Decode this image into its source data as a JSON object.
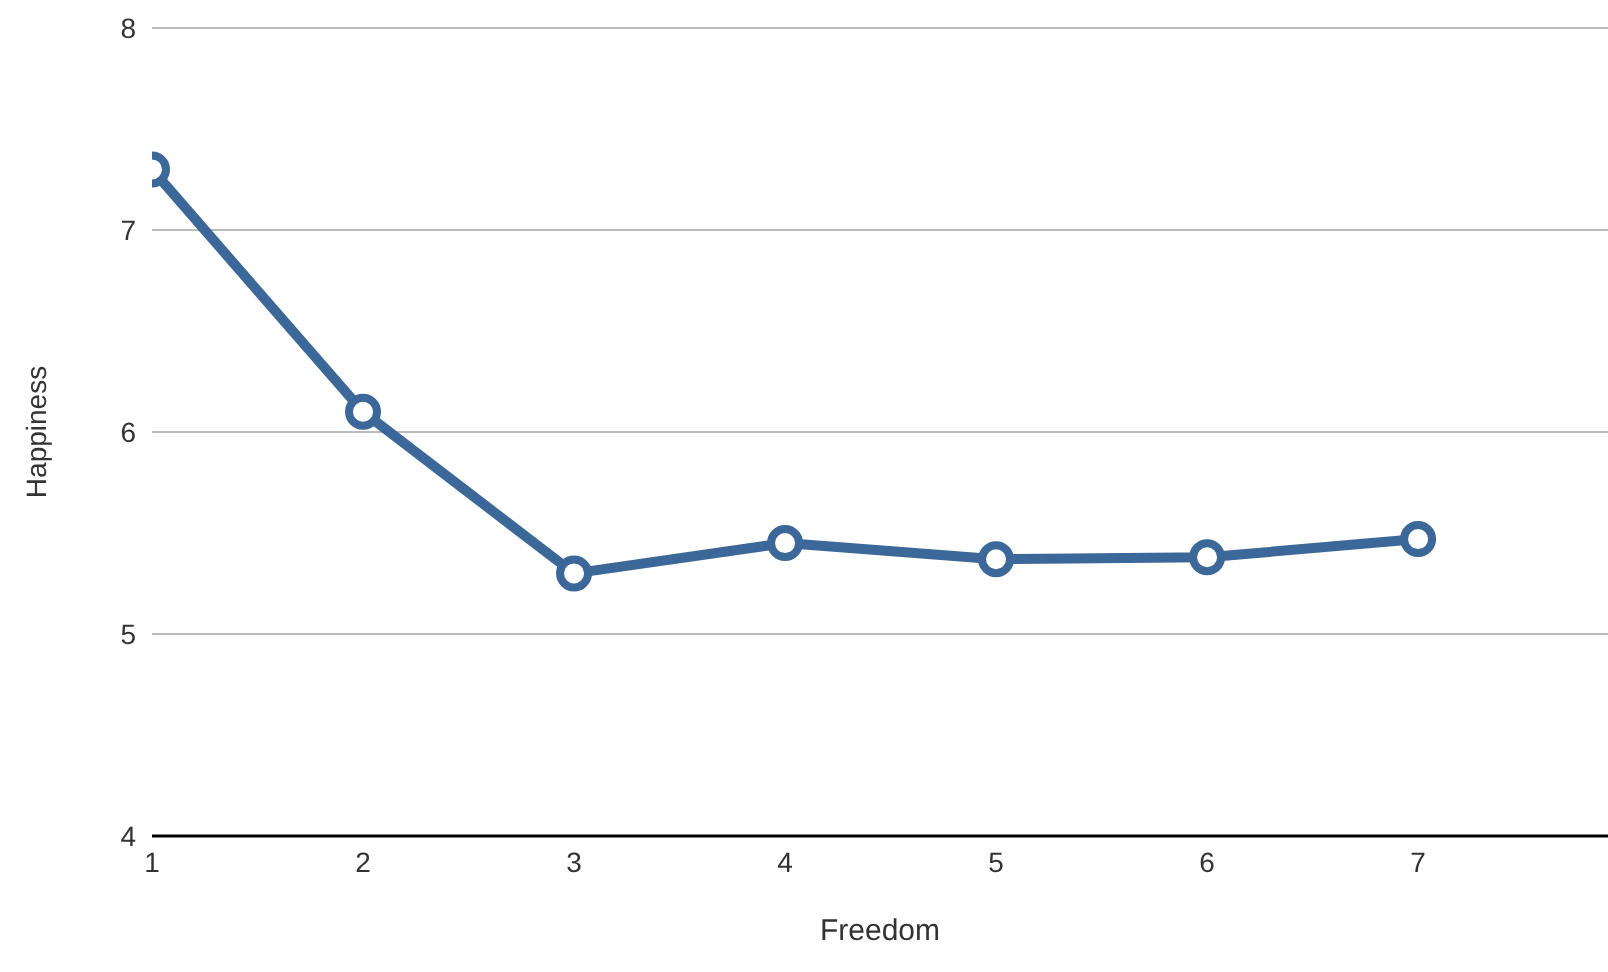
{
  "chart_data": {
    "type": "line",
    "xlabel": "Freedom",
    "ylabel": "Happiness",
    "x": [
      1,
      2,
      3,
      4,
      5,
      6,
      7
    ],
    "series": [
      {
        "color": "#3c6899",
        "values": [
          7.3,
          6.1,
          5.3,
          5.45,
          5.37,
          5.38,
          5.47
        ]
      }
    ],
    "xlim": [
      1,
      7.9
    ],
    "xticks": [
      1,
      2,
      3,
      4,
      5,
      6,
      7
    ],
    "ylim": [
      4,
      8
    ],
    "yticks": [
      4,
      5,
      6,
      7,
      8
    ],
    "grid": "y",
    "marker": "circle",
    "line_style": "solid",
    "legend": false
  }
}
